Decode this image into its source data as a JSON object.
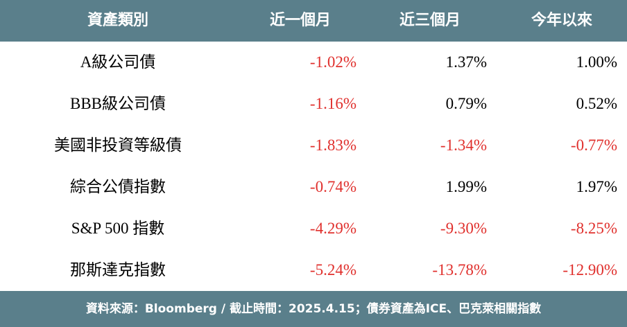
{
  "table": {
    "header": [
      "資產類別",
      "近一個月",
      "近三個月",
      "今年以來"
    ],
    "rows": [
      [
        "A級公司債",
        "-1.02%",
        "1.37%",
        "1.00%"
      ],
      [
        "BBB級公司債",
        "-1.16%",
        "0.79%",
        "0.52%"
      ],
      [
        "美國非投資等級債",
        "-1.83%",
        "-1.34%",
        "-0.77%"
      ],
      [
        "綜合公債指數",
        "-0.74%",
        "1.99%",
        "1.97%"
      ],
      [
        "S&P 500 指數",
        "-4.29%",
        "-9.30%",
        "-8.25%"
      ],
      [
        "那斯達克指數",
        "-5.24%",
        "-13.78%",
        "-12.90%"
      ]
    ]
  },
  "footer": "資料來源：Bloomberg / 截止時間：2025.4.15；債券資產為ICE、巴克萊相關指數"
}
